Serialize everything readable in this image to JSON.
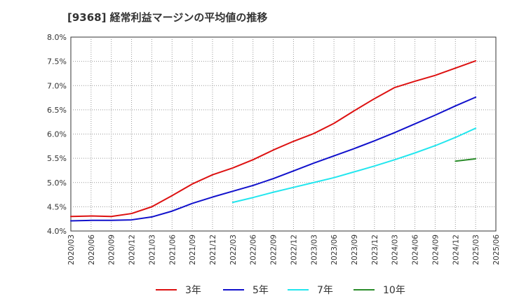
{
  "chart_data": {
    "type": "line",
    "title": "[9368]  経常利益マージンの平均値の推移",
    "x_categories": [
      "2020/03",
      "2020/06",
      "2020/09",
      "2020/12",
      "2021/03",
      "2021/06",
      "2021/09",
      "2021/12",
      "2022/03",
      "2022/06",
      "2022/09",
      "2022/12",
      "2023/03",
      "2023/06",
      "2023/09",
      "2023/12",
      "2024/03",
      "2024/06",
      "2024/09",
      "2024/12",
      "2025/03",
      "2025/06"
    ],
    "y_ticks": [
      "8.0%",
      "7.5%",
      "7.0%",
      "6.5%",
      "6.0%",
      "5.5%",
      "5.0%",
      "4.5%",
      "4.0%"
    ],
    "ylim": [
      4.0,
      8.0
    ],
    "y_unit": "%",
    "grid": true,
    "legend_position": "bottom",
    "series": [
      {
        "name": "3年",
        "color": "#dd1111",
        "values": [
          4.3,
          4.31,
          4.3,
          4.36,
          4.5,
          4.73,
          4.97,
          5.16,
          5.3,
          5.47,
          5.67,
          5.85,
          6.01,
          6.22,
          6.48,
          6.73,
          6.96,
          7.09,
          7.21,
          7.36,
          7.51,
          null
        ]
      },
      {
        "name": "5年",
        "color": "#1111cc",
        "values": [
          4.21,
          4.22,
          4.22,
          4.23,
          4.29,
          4.41,
          4.57,
          4.7,
          4.82,
          4.94,
          5.08,
          5.24,
          5.4,
          5.55,
          5.7,
          5.86,
          6.03,
          6.21,
          6.39,
          6.58,
          6.76,
          null
        ]
      },
      {
        "name": "7年",
        "color": "#22e6ee",
        "values": [
          null,
          null,
          null,
          null,
          null,
          null,
          null,
          null,
          4.59,
          4.69,
          4.8,
          4.9,
          5.0,
          5.1,
          5.22,
          5.34,
          5.47,
          5.61,
          5.76,
          5.93,
          6.12,
          null
        ]
      },
      {
        "name": "10年",
        "color": "#2a8c2a",
        "values": [
          null,
          null,
          null,
          null,
          null,
          null,
          null,
          null,
          null,
          null,
          null,
          null,
          null,
          null,
          null,
          null,
          null,
          null,
          null,
          5.44,
          5.49,
          null
        ]
      }
    ]
  }
}
